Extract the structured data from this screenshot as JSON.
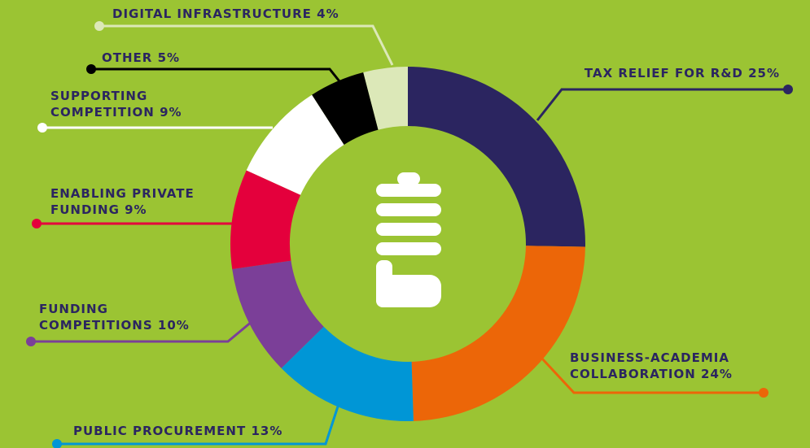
{
  "chart_data": {
    "type": "donut",
    "categories": [
      "TAX RELIEF FOR R&D",
      "BUSINESS-ACADEMIA COLLABORATION",
      "PUBLIC PROCUREMENT",
      "FUNDING COMPETITIONS",
      "ENABLING PRIVATE FUNDING",
      "SUPPORTING COMPETITION",
      "OTHER",
      "DIGITAL INFRASTRUCTURE"
    ],
    "values": [
      25,
      24,
      13,
      10,
      9,
      9,
      5,
      4
    ],
    "value_labels": [
      "25%",
      "24%",
      "13%",
      "10%",
      "9%",
      "9%",
      "5%",
      "4%"
    ],
    "colors": [
      "#2b2560",
      "#ec6608",
      "#0096d6",
      "#7b3f98",
      "#e4003c",
      "#ffffff",
      "#000000",
      "#dce8b8"
    ]
  }
}
